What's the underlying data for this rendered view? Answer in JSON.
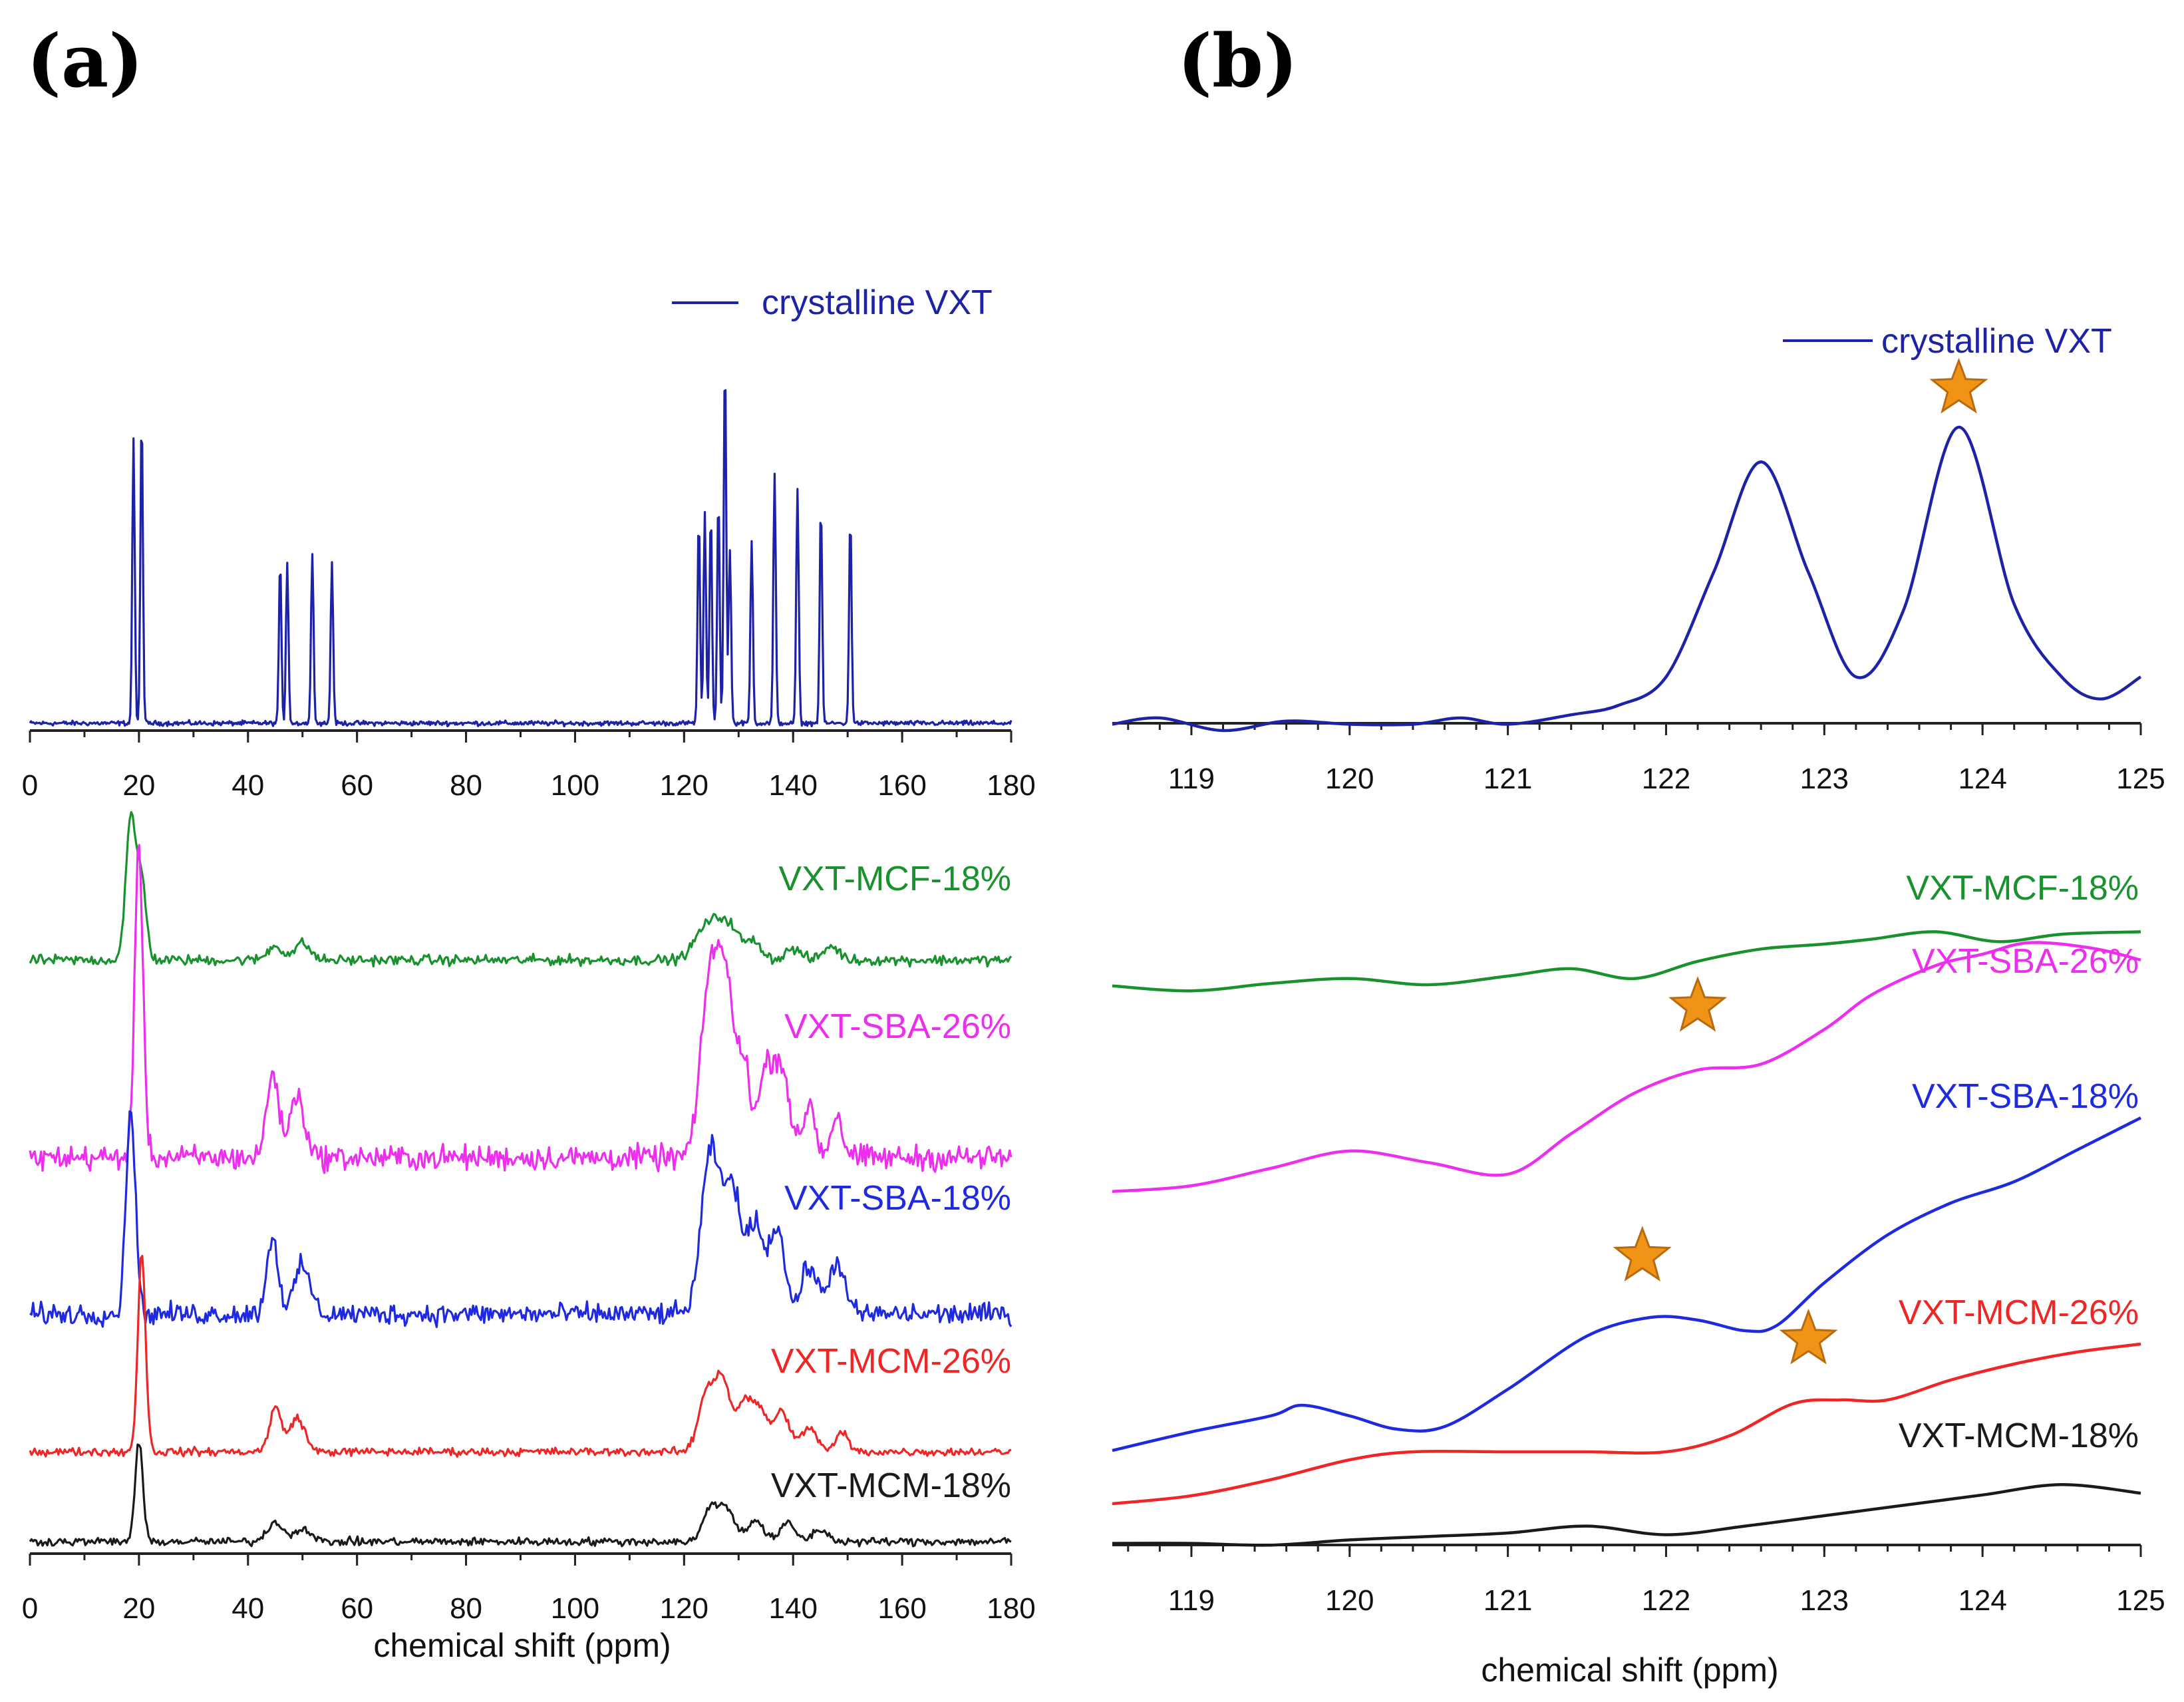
{
  "panels": {
    "a_label": "(a)",
    "b_label": "(b)"
  },
  "colors": {
    "crystalline": "#1e22a6",
    "mcf18": "#18912e",
    "sba26": "#ee2eee",
    "sba18": "#1f2adf",
    "mcm26": "#ee2626",
    "mcm18": "#1a1a1a",
    "star": "#ef9417",
    "star_stroke": "#b86a10"
  },
  "chart_data": [
    {
      "id": "a_top",
      "type": "line",
      "x_ticks": [
        "0",
        "20",
        "40",
        "60",
        "80",
        "100",
        "120",
        "140",
        "160",
        "180"
      ],
      "xlim": [
        0,
        180
      ],
      "xlabel": "",
      "legend": "crystalline VXT",
      "series": [
        {
          "name": "crystalline VXT",
          "peaks_ppm": [
            19.0,
            20.5,
            45.9,
            47.2,
            51.8,
            55.4,
            122.7,
            123.8,
            124.9,
            126.3,
            127.5,
            128.4,
            132.4,
            136.6,
            140.8,
            145.1,
            150.5
          ],
          "peak_heights": [
            0.78,
            0.85,
            0.44,
            0.44,
            0.47,
            0.44,
            0.56,
            0.57,
            0.58,
            0.62,
            1.0,
            0.48,
            0.5,
            0.68,
            0.64,
            0.6,
            0.57
          ]
        }
      ]
    },
    {
      "id": "a_bottom",
      "type": "line",
      "x_ticks": [
        "0",
        "20",
        "40",
        "60",
        "80",
        "100",
        "120",
        "140",
        "160",
        "180"
      ],
      "xlim": [
        0,
        180
      ],
      "xlabel": "chemical shift (ppm)",
      "series": [
        {
          "name": "VXT-MCF-18%",
          "main_peak_ppm": 18.5,
          "aromatic_region_ppm": [
            122,
            150
          ]
        },
        {
          "name": "VXT-SBA-26%",
          "main_peak_ppm": 20.0,
          "aromatic_region_ppm": [
            122,
            150
          ]
        },
        {
          "name": "VXT-SBA-18%",
          "main_peak_ppm": 18.5,
          "aromatic_region_ppm": [
            122,
            150
          ]
        },
        {
          "name": "VXT-MCM-26%",
          "main_peak_ppm": 20.5,
          "aromatic_region_ppm": [
            122,
            150
          ]
        },
        {
          "name": "VXT-MCM-18%",
          "main_peak_ppm": 20.0,
          "aromatic_region_ppm": [
            122,
            150
          ]
        }
      ]
    },
    {
      "id": "b_top",
      "type": "line",
      "x_ticks": [
        "119",
        "120",
        "121",
        "122",
        "123",
        "124",
        "125"
      ],
      "xlim": [
        118.5,
        125
      ],
      "xlabel": "",
      "legend": "crystalline VXT",
      "series": [
        {
          "name": "crystalline VXT",
          "x": [
            118.5,
            118.8,
            119.2,
            119.6,
            120.0,
            120.4,
            120.7,
            121.0,
            121.4,
            121.7,
            122.0,
            122.3,
            122.6,
            122.9,
            123.2,
            123.5,
            123.85,
            124.2,
            124.5,
            124.75,
            125.0
          ],
          "y": [
            0.02,
            0.04,
            0.0,
            0.03,
            0.02,
            0.02,
            0.04,
            0.02,
            0.05,
            0.08,
            0.17,
            0.5,
            0.85,
            0.5,
            0.17,
            0.38,
            0.96,
            0.4,
            0.17,
            0.1,
            0.17
          ]
        }
      ],
      "markers": [
        {
          "x": 123.85,
          "symbol": "star"
        }
      ]
    },
    {
      "id": "b_bottom",
      "type": "line",
      "x_ticks": [
        "119",
        "120",
        "121",
        "122",
        "123",
        "124",
        "125"
      ],
      "xlim": [
        118.5,
        125
      ],
      "xlabel": "chemical shift (ppm)",
      "series": [
        {
          "name": "VXT-MCF-18%",
          "x": [
            118.5,
            119.0,
            119.5,
            120.0,
            120.5,
            121.0,
            121.4,
            121.8,
            122.2,
            122.6,
            123.0,
            123.3,
            123.7,
            124.1,
            124.5,
            125.0
          ],
          "y": [
            0.72,
            0.68,
            0.74,
            0.78,
            0.73,
            0.8,
            0.86,
            0.78,
            0.92,
            1.02,
            1.06,
            1.1,
            1.16,
            1.08,
            1.14,
            1.16
          ]
        },
        {
          "name": "VXT-SBA-26%",
          "x": [
            118.5,
            119.0,
            119.5,
            120.0,
            120.5,
            121.0,
            121.4,
            121.8,
            122.2,
            122.6,
            123.0,
            123.3,
            123.7,
            124.0,
            124.3,
            124.7,
            125.0
          ],
          "y": [
            0.32,
            0.34,
            0.4,
            0.46,
            0.42,
            0.38,
            0.52,
            0.66,
            0.74,
            0.76,
            0.88,
            1.0,
            1.1,
            1.14,
            1.18,
            1.16,
            1.12
          ]
        },
        {
          "name": "VXT-SBA-18%",
          "x": [
            118.5,
            119.0,
            119.5,
            119.7,
            120.0,
            120.3,
            120.6,
            121.0,
            121.5,
            121.9,
            122.2,
            122.5,
            122.7,
            123.0,
            123.4,
            123.8,
            124.2,
            124.6,
            125.0
          ],
          "y": [
            0.05,
            0.12,
            0.18,
            0.22,
            0.18,
            0.13,
            0.14,
            0.28,
            0.48,
            0.55,
            0.54,
            0.5,
            0.52,
            0.68,
            0.86,
            0.98,
            1.06,
            1.18,
            1.3
          ]
        },
        {
          "name": "VXT-MCM-26%",
          "x": [
            118.5,
            119.0,
            119.5,
            120.0,
            120.4,
            121.0,
            121.5,
            122.0,
            122.4,
            122.8,
            123.1,
            123.4,
            123.8,
            124.2,
            124.6,
            125.0
          ],
          "y": [
            0.1,
            0.14,
            0.22,
            0.32,
            0.36,
            0.36,
            0.36,
            0.36,
            0.44,
            0.6,
            0.62,
            0.62,
            0.72,
            0.8,
            0.86,
            0.9
          ]
        },
        {
          "name": "VXT-MCM-18%",
          "x": [
            118.5,
            119.0,
            119.5,
            120.0,
            120.5,
            121.0,
            121.5,
            122.0,
            122.5,
            123.0,
            123.5,
            124.0,
            124.5,
            125.0
          ],
          "y": [
            0.04,
            0.04,
            0.03,
            0.06,
            0.08,
            0.1,
            0.14,
            0.09,
            0.14,
            0.2,
            0.26,
            0.32,
            0.38,
            0.33
          ]
        }
      ],
      "markers": [
        {
          "series": "VXT-SBA-26%",
          "x": 122.2,
          "symbol": "star"
        },
        {
          "series": "VXT-SBA-18%",
          "x": 121.85,
          "symbol": "star"
        },
        {
          "series": "VXT-MCM-26%",
          "x": 122.9,
          "symbol": "star"
        }
      ]
    }
  ],
  "labels": {
    "crystalline": "crystalline VXT",
    "mcf18": "VXT-MCF-18%",
    "sba26": "VXT-SBA-26%",
    "sba18": "VXT-SBA-18%",
    "mcm26": "VXT-MCM-26%",
    "mcm18": "VXT-MCM-18%",
    "xlabel": "chemical shift (ppm)"
  }
}
